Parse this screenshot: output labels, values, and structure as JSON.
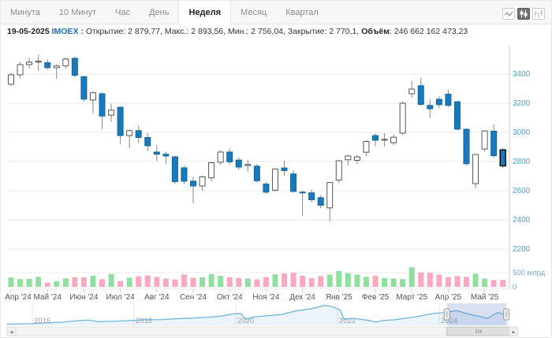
{
  "header": {
    "tabs": [
      {
        "label": "Минута",
        "active": false
      },
      {
        "label": "10 Минут",
        "active": false
      },
      {
        "label": "Час",
        "active": false
      },
      {
        "label": "День",
        "active": false
      },
      {
        "label": "Неделя",
        "active": true
      },
      {
        "label": "Месяц",
        "active": false
      },
      {
        "label": "Квартал",
        "active": false
      }
    ],
    "chart_type_icons": [
      {
        "name": "line-chart",
        "active": false
      },
      {
        "name": "candlestick",
        "active": true
      },
      {
        "name": "ohlc-bars",
        "active": false
      }
    ]
  },
  "info": {
    "date": "19-05-2025",
    "symbol": "IMOEX",
    "symbol_suffix": ":",
    "ohlc_text": "Открытие: 2 879,77, Макс.: 2 893,56, Мин.: 2 756,04, Закрытие: 2 770,1,",
    "volume_label": "Объём",
    "volume_value": ": 246 662 162 473,23"
  },
  "chart_data": {
    "type": "candlestick",
    "symbol": "IMOEX",
    "interval": "Неделя",
    "last_bar": {
      "date": "19-05-2025",
      "open": 2879.77,
      "high": 2893.56,
      "low": 2756.04,
      "close": 2770.1,
      "volume_text": "246 662 162 473,23"
    },
    "y_axis": {
      "min": 2200,
      "max": 3400,
      "step": 200,
      "labels": [
        "3400",
        "3200",
        "3000",
        "2800",
        "2600",
        "2400",
        "2200"
      ],
      "position": "right",
      "grid": true
    },
    "candles": [
      [
        3330,
        3408,
        3318,
        3395
      ],
      [
        3395,
        3482,
        3372,
        3465
      ],
      [
        3465,
        3512,
        3438,
        3482
      ],
      [
        3482,
        3532,
        3422,
        3488
      ],
      [
        3478,
        3502,
        3430,
        3444
      ],
      [
        3444,
        3468,
        3368,
        3456
      ],
      [
        3456,
        3515,
        3436,
        3503
      ],
      [
        3508,
        3521,
        3378,
        3392
      ],
      [
        3382,
        3388,
        3212,
        3228
      ],
      [
        3222,
        3282,
        3128,
        3272
      ],
      [
        3265,
        3272,
        3022,
        3112
      ],
      [
        3118,
        3198,
        3072,
        3152
      ],
      [
        3172,
        3178,
        2918,
        2978
      ],
      [
        2978,
        3018,
        2892,
        3012
      ],
      [
        3012,
        3048,
        2925,
        2965
      ],
      [
        2965,
        2995,
        2872,
        2908
      ],
      [
        2865,
        2912,
        2802,
        2850
      ],
      [
        2850,
        2868,
        2782,
        2838
      ],
      [
        2832,
        2840,
        2648,
        2662
      ],
      [
        2757,
        2772,
        2645,
        2665
      ],
      [
        2665,
        2692,
        2512,
        2632
      ],
      [
        2632,
        2705,
        2598,
        2695
      ],
      [
        2688,
        2798,
        2662,
        2792
      ],
      [
        2795,
        2878,
        2778,
        2865
      ],
      [
        2865,
        2890,
        2780,
        2798
      ],
      [
        2810,
        2830,
        2742,
        2762
      ],
      [
        2772,
        2812,
        2730,
        2780
      ],
      [
        2768,
        2782,
        2655,
        2668
      ],
      [
        2645,
        2662,
        2575,
        2590
      ],
      [
        2602,
        2755,
        2592,
        2748
      ],
      [
        2756,
        2808,
        2700,
        2738
      ],
      [
        2715,
        2740,
        2585,
        2595
      ],
      [
        2590,
        2600,
        2424,
        2585
      ],
      [
        2585,
        2605,
        2520,
        2538
      ],
      [
        2552,
        2570,
        2480,
        2500
      ],
      [
        2482,
        2662,
        2390,
        2656
      ],
      [
        2672,
        2810,
        2652,
        2805
      ],
      [
        2812,
        2848,
        2772,
        2838
      ],
      [
        2808,
        2848,
        2782,
        2832
      ],
      [
        2864,
        2945,
        2838,
        2938
      ],
      [
        2978,
        2992,
        2905,
        2946
      ],
      [
        2948,
        2995,
        2902,
        2952
      ],
      [
        2929,
        2985,
        2912,
        2967
      ],
      [
        2995,
        3212,
        2982,
        3200
      ],
      [
        3265,
        3353,
        3238,
        3297
      ],
      [
        3320,
        3373,
        3182,
        3192
      ],
      [
        3185,
        3225,
        3098,
        3162
      ],
      [
        3227,
        3248,
        3168,
        3190
      ],
      [
        3262,
        3292,
        3172,
        3185
      ],
      [
        3210,
        3218,
        3015,
        3022
      ],
      [
        3021,
        3028,
        2772,
        2785
      ],
      [
        2648,
        2852,
        2614,
        2848
      ],
      [
        2886,
        3015,
        2868,
        3010
      ],
      [
        3008,
        3054,
        2825,
        2840
      ],
      [
        2879.77,
        2893.56,
        2756.04,
        2770.1
      ]
    ],
    "volumes_bln": [
      330,
      270,
      280,
      350,
      150,
      200,
      300,
      340,
      340,
      390,
      270,
      450,
      210,
      320,
      370,
      400,
      350,
      290,
      260,
      430,
      320,
      340,
      450,
      390,
      340,
      310,
      290,
      260,
      340,
      440,
      470,
      490,
      390,
      310,
      380,
      430,
      560,
      480,
      430,
      350,
      390,
      310,
      290,
      270,
      690,
      510,
      490,
      430,
      340,
      380,
      350,
      460,
      290,
      240,
      247
    ],
    "volume_axis": {
      "top_label": "500 млрд",
      "bottom_label": "0",
      "top_value": 500,
      "bottom_value": 0
    },
    "x_labels": [
      {
        "i": 0,
        "label": "Апр '24"
      },
      {
        "i": 4,
        "label": "Май '24"
      },
      {
        "i": 8,
        "label": "Июн '24"
      },
      {
        "i": 12,
        "label": "Июл '24"
      },
      {
        "i": 16,
        "label": "Авг '24"
      },
      {
        "i": 20,
        "label": "Сен '24"
      },
      {
        "i": 24,
        "label": "Окт '24"
      },
      {
        "i": 28,
        "label": "Ноя '24"
      },
      {
        "i": 32,
        "label": "Дек '24"
      },
      {
        "i": 36,
        "label": "Янв '25"
      },
      {
        "i": 40,
        "label": "Фев '25"
      },
      {
        "i": 44,
        "label": "Март '25"
      },
      {
        "i": 48,
        "label": "Апр '25"
      },
      {
        "i": 52,
        "label": "Май '25"
      }
    ],
    "navigator": {
      "year_labels": [
        "2016",
        "2018",
        "2020",
        "2022",
        "2024"
      ],
      "series": [
        [
          2015.5,
          1680
        ],
        [
          2015.8,
          1720
        ],
        [
          2016,
          1740
        ],
        [
          2016.3,
          1840
        ],
        [
          2016.6,
          1950
        ],
        [
          2016.9,
          2150
        ],
        [
          2017.1,
          2230
        ],
        [
          2017.3,
          2020
        ],
        [
          2017.6,
          2070
        ],
        [
          2017.9,
          2160
        ],
        [
          2018.2,
          2280
        ],
        [
          2018.5,
          2290
        ],
        [
          2018.8,
          2400
        ],
        [
          2019.1,
          2480
        ],
        [
          2019.4,
          2600
        ],
        [
          2019.7,
          2750
        ],
        [
          2019.95,
          3080
        ],
        [
          2020.1,
          3100
        ],
        [
          2020.2,
          2350
        ],
        [
          2020.35,
          2650
        ],
        [
          2020.6,
          2800
        ],
        [
          2020.9,
          3000
        ],
        [
          2021.2,
          3500
        ],
        [
          2021.5,
          3800
        ],
        [
          2021.75,
          4250
        ],
        [
          2021.9,
          4050
        ],
        [
          2022.05,
          3600
        ],
        [
          2022.13,
          2350
        ],
        [
          2022.3,
          2450
        ],
        [
          2022.45,
          2350
        ],
        [
          2022.6,
          2200
        ],
        [
          2022.75,
          1950
        ],
        [
          2022.9,
          2180
        ],
        [
          2023.1,
          2250
        ],
        [
          2023.3,
          2450
        ],
        [
          2023.6,
          2750
        ],
        [
          2023.9,
          3150
        ],
        [
          2024.1,
          3250
        ],
        [
          2024.35,
          3500
        ],
        [
          2024.5,
          3200
        ],
        [
          2024.7,
          2850
        ],
        [
          2024.85,
          2650
        ],
        [
          2024.95,
          2450
        ],
        [
          2025.05,
          2900
        ],
        [
          2025.15,
          3250
        ],
        [
          2025.25,
          3050
        ],
        [
          2025.32,
          2950
        ],
        [
          2025.4,
          2770
        ]
      ],
      "selection_years": [
        2024.15,
        2025.32
      ]
    },
    "colors": {
      "up_fill": "#ffffff",
      "up_border": "#565656",
      "down_fill": "#1879bd",
      "down_border": "#12669f",
      "last_border": "#000000",
      "wick": "#888888",
      "vol_up": "#8fdf9f",
      "vol_down": "#f9a8bf",
      "grid": "#e8e8e8",
      "axis_line": "#c8c8c8",
      "price_label": "#4aa3dd",
      "vol_label": "#6fa8cc",
      "x_label": "#555555",
      "year_label": "#a0a0a0",
      "nav_line": "#69b0d9",
      "nav_fill": "rgba(105,176,217,0.14)",
      "nav_selection": "rgba(80,115,190,0.22)"
    }
  },
  "scrollbar": {
    "left_arrow": "◂",
    "right_arrow": "▸"
  }
}
